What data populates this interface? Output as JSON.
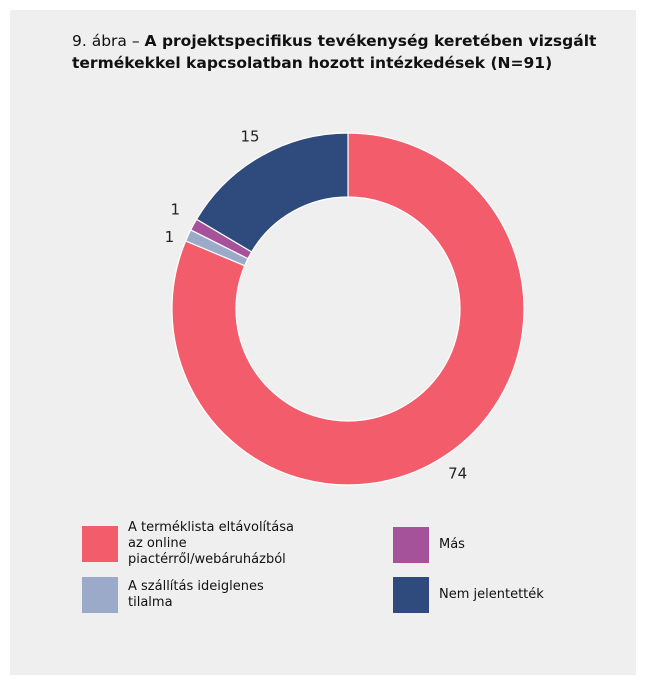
{
  "chart_data": {
    "type": "donut",
    "title_prefix": "9. ábra –",
    "title": "A projektspecifikus tevékenység keretében vizsgált termékekkel kapcsolatban hozott intézkedések (N=91)",
    "categories": [
      "A terméklista eltávolítása az online piactérről/webáruházból",
      "A szállítás ideiglenes tilalma",
      "Más",
      "Nem jelentették"
    ],
    "values": [
      74,
      1,
      1,
      15
    ],
    "colors": [
      "#f25c6b",
      "#9aaac8",
      "#a5529a",
      "#2f4a7c"
    ],
    "legend": "bottom"
  }
}
